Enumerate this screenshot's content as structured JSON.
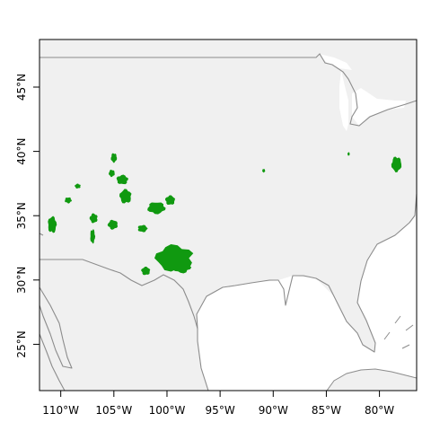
{
  "map": {
    "land_color": "#f0f0f0",
    "water_color": "#ffffff",
    "boundary_color": "#8c8c8c",
    "occurrence_color": "#109910",
    "x_ticks": [
      {
        "value": -110,
        "label": "110°W"
      },
      {
        "value": -105,
        "label": "105°W"
      },
      {
        "value": -100,
        "label": "100°W"
      },
      {
        "value": -95,
        "label": "95°W"
      },
      {
        "value": -90,
        "label": "90°W"
      },
      {
        "value": -85,
        "label": "85°W"
      },
      {
        "value": -80,
        "label": "80°W"
      }
    ],
    "y_ticks": [
      {
        "value": 25,
        "label": "25°N"
      },
      {
        "value": 30,
        "label": "30°N"
      },
      {
        "value": 35,
        "label": "35°N"
      },
      {
        "value": 40,
        "label": "40°N"
      },
      {
        "value": 45,
        "label": "45°N"
      }
    ],
    "extent": {
      "lon_min": -112.0,
      "lon_max": -76.5,
      "lat_min": 21.4,
      "lat_max": 48.7
    },
    "occurrence_patches": [
      {
        "name": "west-texas-large",
        "lon": -99.3,
        "lat": 31.7,
        "rlon": 1.9,
        "rlat": 1.1
      },
      {
        "name": "west-texas-south",
        "lon": -98.6,
        "lat": 31.0,
        "rlon": 0.9,
        "rlat": 0.5
      },
      {
        "name": "south-colorado",
        "lon": -103.9,
        "lat": 36.5,
        "rlon": 0.6,
        "rlat": 0.6
      },
      {
        "name": "panhandle",
        "lon": -101.0,
        "lat": 35.6,
        "rlon": 0.9,
        "rlat": 0.5
      },
      {
        "name": "panhandle-east",
        "lon": -99.7,
        "lat": 36.2,
        "rlon": 0.5,
        "rlat": 0.4
      },
      {
        "name": "colorado-north",
        "lon": -105.0,
        "lat": 39.5,
        "rlon": 0.3,
        "rlat": 0.4
      },
      {
        "name": "colorado-mid",
        "lon": -104.2,
        "lat": 37.8,
        "rlon": 0.6,
        "rlat": 0.4
      },
      {
        "name": "colorado-west",
        "lon": -105.2,
        "lat": 38.3,
        "rlon": 0.3,
        "rlat": 0.3
      },
      {
        "name": "arizona-west",
        "lon": -110.8,
        "lat": 34.3,
        "rlon": 0.45,
        "rlat": 0.7
      },
      {
        "name": "new-mexico-1",
        "lon": -105.1,
        "lat": 34.3,
        "rlon": 0.5,
        "rlat": 0.4
      },
      {
        "name": "new-mexico-2",
        "lon": -102.3,
        "lat": 34.0,
        "rlon": 0.5,
        "rlat": 0.3
      },
      {
        "name": "new-mexico-3",
        "lon": -106.9,
        "lat": 34.8,
        "rlon": 0.4,
        "rlat": 0.4
      },
      {
        "name": "new-mexico-4",
        "lon": -107.0,
        "lat": 33.4,
        "rlon": 0.25,
        "rlat": 0.6
      },
      {
        "name": "utah-1",
        "lon": -108.4,
        "lat": 37.3,
        "rlon": 0.3,
        "rlat": 0.2
      },
      {
        "name": "utah-2",
        "lon": -109.3,
        "lat": 36.2,
        "rlon": 0.35,
        "rlat": 0.25
      },
      {
        "name": "texas-west",
        "lon": -102.0,
        "lat": 30.7,
        "rlon": 0.45,
        "rlat": 0.35
      },
      {
        "name": "arkansas",
        "lon": -90.9,
        "lat": 38.5,
        "rlon": 0.15,
        "rlat": 0.15
      },
      {
        "name": "ohio",
        "lon": -82.9,
        "lat": 39.8,
        "rlon": 0.12,
        "rlat": 0.15
      },
      {
        "name": "virginia",
        "lon": -78.4,
        "lat": 39.0,
        "rlon": 0.5,
        "rlat": 0.65
      }
    ]
  }
}
